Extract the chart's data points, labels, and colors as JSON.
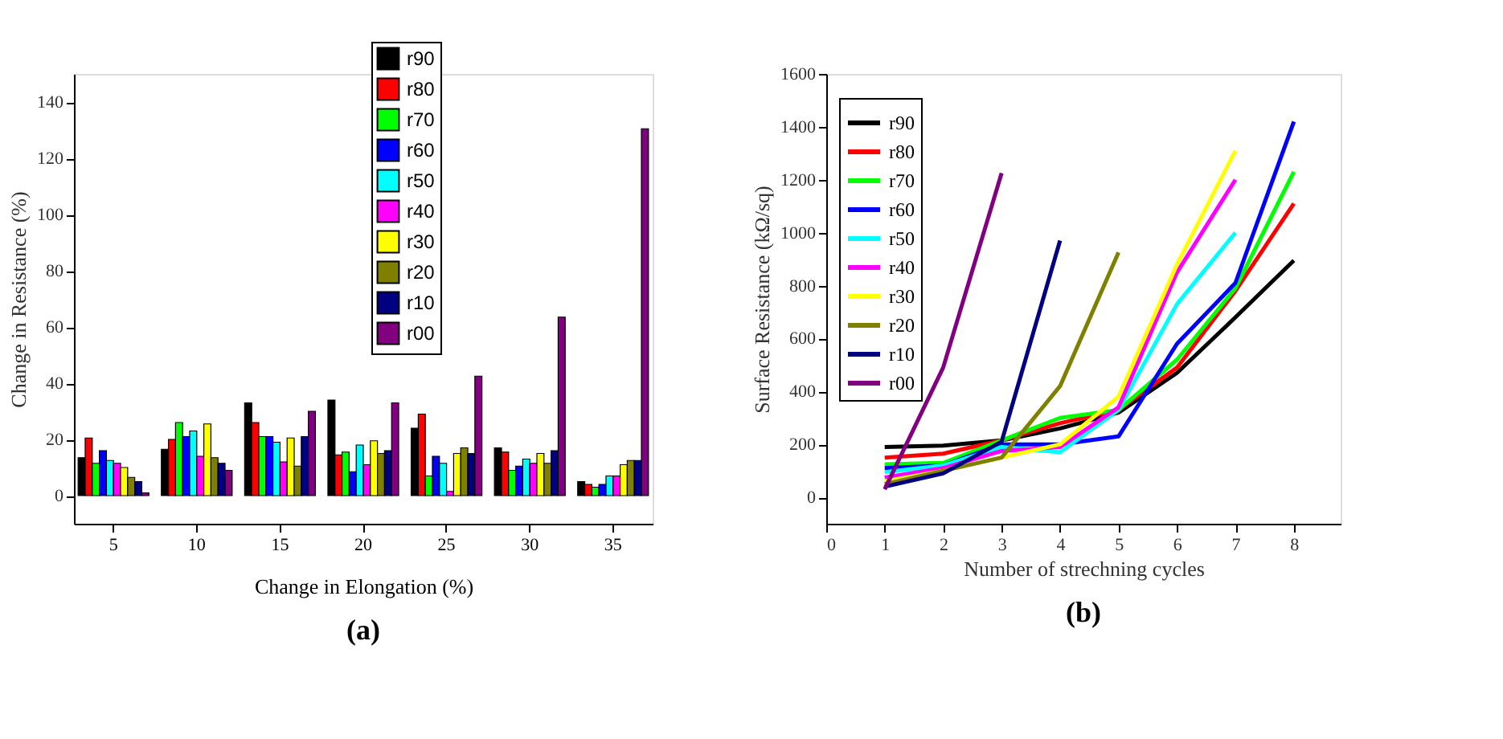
{
  "chart_data": [
    {
      "type": "bar",
      "xlabel": "Change in Elongation (%)",
      "ylabel": "Change in Resistance (%)",
      "categories": [
        "5",
        "10",
        "15",
        "20",
        "25",
        "30",
        "35"
      ],
      "ylim": [
        -10,
        150
      ],
      "yticks": [
        0,
        20,
        40,
        60,
        80,
        100,
        120,
        140
      ],
      "grid": false,
      "legend": "top right",
      "annotations": [
        "(a)"
      ],
      "series": [
        {
          "name": "r90",
          "color": "#000000",
          "values": [
            13.5,
            16.5,
            33,
            34,
            24,
            17,
            5
          ]
        },
        {
          "name": "r80",
          "color": "#ff0000",
          "values": [
            20.5,
            20,
            26,
            14.5,
            29,
            15.5,
            4
          ]
        },
        {
          "name": "r70",
          "color": "#00ff00",
          "values": [
            11.5,
            26,
            21,
            15.5,
            7,
            9,
            3
          ]
        },
        {
          "name": "r60",
          "color": "#0000ff",
          "values": [
            16,
            21,
            21,
            8.5,
            14,
            10.5,
            4
          ]
        },
        {
          "name": "r50",
          "color": "#00ffff",
          "values": [
            12.5,
            23,
            19,
            18,
            11.5,
            13,
            7
          ]
        },
        {
          "name": "r40",
          "color": "#ff00ff",
          "values": [
            11.5,
            14,
            12,
            11,
            1.5,
            11.5,
            7
          ]
        },
        {
          "name": "r30",
          "color": "#ffff00",
          "values": [
            10,
            25.5,
            20.5,
            19.5,
            15,
            15,
            11
          ]
        },
        {
          "name": "r20",
          "color": "#808000",
          "values": [
            6.5,
            13.5,
            10.5,
            15,
            17,
            11.5,
            12.5
          ]
        },
        {
          "name": "r10",
          "color": "#000080",
          "values": [
            5,
            11.5,
            21,
            16,
            15,
            16,
            12.5
          ]
        },
        {
          "name": "r00",
          "color": "#800080",
          "values": [
            1,
            9,
            30,
            33,
            42.5,
            63.5,
            130.5
          ]
        }
      ]
    },
    {
      "type": "line",
      "xlabel": "Number of strechning cycles",
      "ylabel": "Surface Resistance (kΩ/sq)",
      "x": [
        1,
        2,
        3,
        4,
        5,
        6,
        7,
        8
      ],
      "xlim": [
        0,
        8.8
      ],
      "xticks": [
        0,
        1,
        2,
        3,
        4,
        5,
        6,
        7,
        8
      ],
      "ylim": [
        -100,
        1600
      ],
      "yticks": [
        0,
        200,
        400,
        600,
        800,
        1000,
        1200,
        1400,
        1600
      ],
      "grid": false,
      "legend": "top left",
      "marker": "none",
      "line_style": "solid",
      "annotations": [
        "(b)"
      ],
      "series": [
        {
          "name": "r90",
          "color": "#000000",
          "values": [
            190,
            195,
            215,
            260,
            320,
            470,
            680,
            895
          ]
        },
        {
          "name": "r80",
          "color": "#ff0000",
          "values": [
            150,
            165,
            215,
            280,
            330,
            490,
            780,
            1110
          ]
        },
        {
          "name": "r70",
          "color": "#00ff00",
          "values": [
            125,
            130,
            215,
            300,
            330,
            520,
            790,
            1230
          ]
        },
        {
          "name": "r60",
          "color": "#0000ff",
          "values": [
            110,
            120,
            200,
            200,
            230,
            580,
            810,
            1420
          ]
        },
        {
          "name": "r50",
          "color": "#00ffff",
          "values": [
            95,
            120,
            190,
            170,
            330,
            730,
            1000,
            null
          ]
        },
        {
          "name": "r40",
          "color": "#ff00ff",
          "values": [
            75,
            110,
            175,
            190,
            340,
            850,
            1200,
            null
          ]
        },
        {
          "name": "r30",
          "color": "#ffff00",
          "values": [
            60,
            100,
            150,
            200,
            380,
            880,
            1310,
            null
          ]
        },
        {
          "name": "r20",
          "color": "#808000",
          "values": [
            50,
            100,
            150,
            420,
            925,
            null,
            null,
            null
          ]
        },
        {
          "name": "r10",
          "color": "#000080",
          "values": [
            40,
            90,
            210,
            970,
            null,
            null,
            null,
            null
          ]
        },
        {
          "name": "r00",
          "color": "#800080",
          "values": [
            30,
            490,
            1225,
            null,
            null,
            null,
            null,
            null
          ]
        }
      ]
    }
  ]
}
